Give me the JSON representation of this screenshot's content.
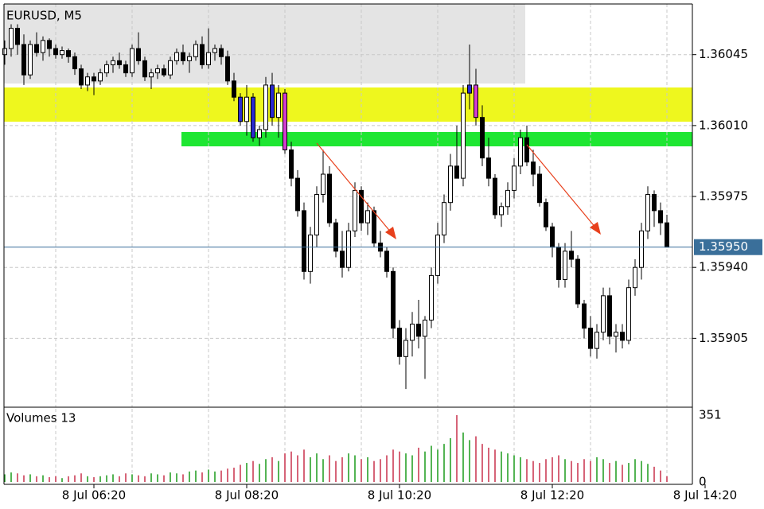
{
  "chart_data": {
    "type": "candlestick",
    "title": "EURUSD, M5",
    "volume_title": "Volumes 13",
    "xlim": [
      -0.125,
      108
    ],
    "xticks": [
      {
        "value": 14,
        "label": "8 Jul 06:20"
      },
      {
        "value": 38,
        "label": "8 Jul 08:20"
      },
      {
        "value": 62,
        "label": "8 Jul 10:20"
      },
      {
        "value": 86,
        "label": "8 Jul 12:20"
      },
      {
        "value": 110,
        "label": "8 Jul 14:20"
      }
    ],
    "ylim": [
      1.35871,
      1.3607
    ],
    "yticks": [
      1.36045,
      {
        "value": 1.3601,
        "label": "1.36010"
      },
      1.35975,
      {
        "value": 1.3594,
        "label": "1.35940"
      },
      1.35905
    ],
    "grid": true,
    "last_price": {
      "value": 1.3595,
      "label": "1.35950"
    },
    "last_color": "#3a6f9a",
    "up_color": "#ffffff",
    "down_color": "#000000",
    "highlights": [
      {
        "color": "#2a2ad0",
        "candles": [
          37,
          39,
          42,
          73
        ]
      },
      {
        "color": "#d43cd0",
        "candles": [
          44,
          74
        ]
      }
    ],
    "ohlc": [
      [
        1.36045,
        1.36052,
        1.3604,
        1.36048
      ],
      [
        1.36048,
        1.3606,
        1.36044,
        1.36058
      ],
      [
        1.36058,
        1.3606,
        1.36045,
        1.3605
      ],
      [
        1.3605,
        1.36055,
        1.3603,
        1.36035
      ],
      [
        1.36035,
        1.36052,
        1.36033,
        1.3605
      ],
      [
        1.3605,
        1.36056,
        1.36044,
        1.36046
      ],
      [
        1.36046,
        1.36054,
        1.36042,
        1.36052
      ],
      [
        1.36052,
        1.36053,
        1.36044,
        1.36048
      ],
      [
        1.36048,
        1.3605,
        1.36043,
        1.36045
      ],
      [
        1.36045,
        1.36049,
        1.36043,
        1.36047
      ],
      [
        1.36047,
        1.36048,
        1.36041,
        1.36044
      ],
      [
        1.36044,
        1.36046,
        1.36035,
        1.36038
      ],
      [
        1.36038,
        1.3604,
        1.36028,
        1.3603
      ],
      [
        1.3603,
        1.36036,
        1.36027,
        1.36034
      ],
      [
        1.36034,
        1.36036,
        1.36025,
        1.36032
      ],
      [
        1.36032,
        1.36038,
        1.3603,
        1.36036
      ],
      [
        1.36036,
        1.36042,
        1.36034,
        1.3604
      ],
      [
        1.3604,
        1.36044,
        1.36036,
        1.36042
      ],
      [
        1.36042,
        1.36046,
        1.36038,
        1.3604
      ],
      [
        1.3604,
        1.36042,
        1.36034,
        1.36036
      ],
      [
        1.36036,
        1.3605,
        1.36034,
        1.36048
      ],
      [
        1.36048,
        1.36056,
        1.3604,
        1.36042
      ],
      [
        1.36042,
        1.36044,
        1.36032,
        1.36034
      ],
      [
        1.36034,
        1.36038,
        1.36028,
        1.36036
      ],
      [
        1.36036,
        1.3604,
        1.36033,
        1.36038
      ],
      [
        1.36038,
        1.3604,
        1.36034,
        1.36035
      ],
      [
        1.36035,
        1.36044,
        1.36033,
        1.36042
      ],
      [
        1.36042,
        1.36048,
        1.3604,
        1.36046
      ],
      [
        1.36046,
        1.3605,
        1.3604,
        1.36042
      ],
      [
        1.36042,
        1.36046,
        1.36036,
        1.36044
      ],
      [
        1.36044,
        1.36052,
        1.36042,
        1.3605
      ],
      [
        1.3605,
        1.36054,
        1.36038,
        1.3604
      ],
      [
        1.3604,
        1.36058,
        1.36038,
        1.36046
      ],
      [
        1.36046,
        1.3605,
        1.36042,
        1.36048
      ],
      [
        1.36048,
        1.3605,
        1.3604,
        1.36044
      ],
      [
        1.36044,
        1.36047,
        1.3603,
        1.36032
      ],
      [
        1.36032,
        1.36036,
        1.36022,
        1.36024
      ],
      [
        1.36024,
        1.36026,
        1.3601,
        1.36012
      ],
      [
        1.36012,
        1.3603,
        1.36005,
        1.36024
      ],
      [
        1.36024,
        1.36026,
        1.36002,
        1.36004
      ],
      [
        1.36004,
        1.3601,
        1.36,
        1.36008
      ],
      [
        1.36008,
        1.36034,
        1.36004,
        1.3603
      ],
      [
        1.3603,
        1.36036,
        1.3601,
        1.36014
      ],
      [
        1.36014,
        1.3603,
        1.36004,
        1.36026
      ],
      [
        1.36026,
        1.36028,
        1.35996,
        1.35998
      ],
      [
        1.35998,
        1.36002,
        1.3598,
        1.35984
      ],
      [
        1.35984,
        1.35988,
        1.35965,
        1.35968
      ],
      [
        1.35968,
        1.35972,
        1.35934,
        1.35938
      ],
      [
        1.35938,
        1.3596,
        1.35932,
        1.35956
      ],
      [
        1.35956,
        1.3598,
        1.3595,
        1.35976
      ],
      [
        1.35976,
        1.35998,
        1.35972,
        1.35986
      ],
      [
        1.35986,
        1.3599,
        1.3596,
        1.35962
      ],
      [
        1.35962,
        1.35964,
        1.35945,
        1.35948
      ],
      [
        1.35948,
        1.35958,
        1.35935,
        1.3594
      ],
      [
        1.3594,
        1.35962,
        1.35938,
        1.35958
      ],
      [
        1.35958,
        1.35982,
        1.35955,
        1.35978
      ],
      [
        1.35978,
        1.3598,
        1.35958,
        1.35962
      ],
      [
        1.35962,
        1.35972,
        1.35956,
        1.35968
      ],
      [
        1.35968,
        1.3597,
        1.3595,
        1.35952
      ],
      [
        1.35952,
        1.35958,
        1.35945,
        1.35948
      ],
      [
        1.35948,
        1.3595,
        1.35935,
        1.35938
      ],
      [
        1.35938,
        1.3594,
        1.35905,
        1.3591
      ],
      [
        1.3591,
        1.35914,
        1.35892,
        1.35896
      ],
      [
        1.35896,
        1.3591,
        1.3588,
        1.35904
      ],
      [
        1.35904,
        1.35918,
        1.35896,
        1.35912
      ],
      [
        1.35912,
        1.35924,
        1.359,
        1.35906
      ],
      [
        1.35906,
        1.35916,
        1.35885,
        1.35914
      ],
      [
        1.35914,
        1.3594,
        1.3591,
        1.35936
      ],
      [
        1.35936,
        1.35962,
        1.35932,
        1.35956
      ],
      [
        1.35956,
        1.35976,
        1.35952,
        1.35972
      ],
      [
        1.35972,
        1.35996,
        1.35968,
        1.3599
      ],
      [
        1.3599,
        1.3601,
        1.35984,
        1.35984
      ],
      [
        1.35984,
        1.3603,
        1.3598,
        1.36026
      ],
      [
        1.36026,
        1.3605,
        1.36018,
        1.3603
      ],
      [
        1.3603,
        1.36038,
        1.3601,
        1.36014
      ],
      [
        1.36014,
        1.3602,
        1.3599,
        1.35994
      ],
      [
        1.35994,
        1.36004,
        1.3598,
        1.35984
      ],
      [
        1.35984,
        1.35986,
        1.35964,
        1.35966
      ],
      [
        1.35966,
        1.35972,
        1.3596,
        1.3597
      ],
      [
        1.3597,
        1.35982,
        1.35966,
        1.35978
      ],
      [
        1.35978,
        1.35994,
        1.35974,
        1.3599
      ],
      [
        1.3599,
        1.36008,
        1.35986,
        1.36004
      ],
      [
        1.36004,
        1.3601,
        1.3599,
        1.35992
      ],
      [
        1.35992,
        1.35998,
        1.3598,
        1.35986
      ],
      [
        1.35986,
        1.3599,
        1.3597,
        1.35972
      ],
      [
        1.35972,
        1.35974,
        1.35958,
        1.3596
      ],
      [
        1.3596,
        1.35962,
        1.35945,
        1.3595
      ],
      [
        1.3595,
        1.35952,
        1.3593,
        1.35934
      ],
      [
        1.35934,
        1.35952,
        1.3593,
        1.35948
      ],
      [
        1.35948,
        1.35958,
        1.3594,
        1.35944
      ],
      [
        1.35944,
        1.35946,
        1.3592,
        1.35922
      ],
      [
        1.35922,
        1.35924,
        1.35905,
        1.3591
      ],
      [
        1.3591,
        1.35916,
        1.35896,
        1.359
      ],
      [
        1.359,
        1.35912,
        1.35895,
        1.35908
      ],
      [
        1.35908,
        1.3593,
        1.35904,
        1.35926
      ],
      [
        1.35926,
        1.3593,
        1.35902,
        1.35906
      ],
      [
        1.35906,
        1.35912,
        1.35898,
        1.35908
      ],
      [
        1.35908,
        1.35912,
        1.359,
        1.35904
      ],
      [
        1.35904,
        1.35934,
        1.35902,
        1.3593
      ],
      [
        1.3593,
        1.35944,
        1.35926,
        1.3594
      ],
      [
        1.3594,
        1.35962,
        1.35934,
        1.35958
      ],
      [
        1.35958,
        1.3598,
        1.35954,
        1.35976
      ],
      [
        1.35976,
        1.35978,
        1.3596,
        1.35968
      ],
      [
        1.35968,
        1.35972,
        1.35956,
        1.35962
      ],
      [
        1.35962,
        1.35966,
        1.3595,
        1.3595
      ]
    ],
    "volume_ylim": [
      0,
      351
    ],
    "volume_yticks": [
      351,
      0
    ],
    "volume_up_color": "#1a9a1a",
    "volume_down_color": "#c8304a",
    "volumes": [
      40,
      50,
      45,
      35,
      40,
      30,
      35,
      25,
      30,
      20,
      30,
      35,
      45,
      30,
      25,
      30,
      35,
      40,
      30,
      45,
      40,
      35,
      30,
      45,
      40,
      35,
      50,
      45,
      40,
      55,
      60,
      50,
      65,
      55,
      60,
      70,
      75,
      90,
      100,
      110,
      95,
      120,
      130,
      110,
      150,
      160,
      140,
      170,
      130,
      150,
      120,
      140,
      110,
      130,
      150,
      140,
      120,
      130,
      110,
      120,
      140,
      170,
      160,
      150,
      140,
      180,
      160,
      190,
      170,
      200,
      230,
      351,
      260,
      220,
      240,
      200,
      180,
      170,
      160,
      150,
      140,
      130,
      120,
      110,
      100,
      120,
      130,
      140,
      120,
      110,
      100,
      120,
      110,
      130,
      120,
      100,
      110,
      90,
      100,
      120,
      110,
      95,
      80,
      60,
      30
    ]
  }
}
